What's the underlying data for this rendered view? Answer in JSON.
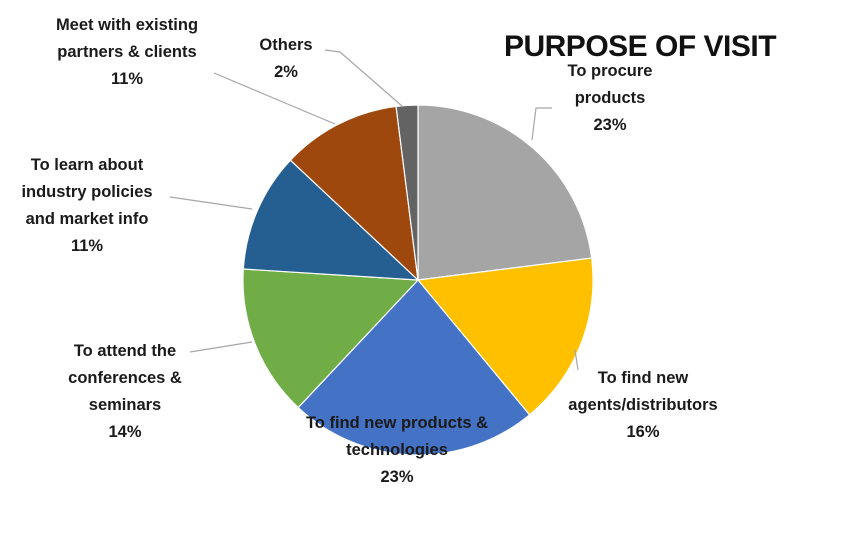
{
  "chart_data": {
    "type": "pie",
    "title": "PURPOSE OF VISIT",
    "slices": [
      {
        "name_lines": [
          "To procure",
          "products"
        ],
        "value": 23,
        "value_label": "23%",
        "color": "#a5a5a5"
      },
      {
        "name_lines": [
          "To find new",
          "agents/distributors"
        ],
        "value": 16,
        "value_label": "16%",
        "color": "#ffc000"
      },
      {
        "name_lines": [
          "To find new products &",
          "technologies"
        ],
        "value": 23,
        "value_label": "23%",
        "color": "#4472c4"
      },
      {
        "name_lines": [
          "To attend the",
          "conferences &",
          "seminars"
        ],
        "value": 14,
        "value_label": "14%",
        "color": "#70ad47"
      },
      {
        "name_lines": [
          "To learn about",
          "industry policies",
          "and market info"
        ],
        "value": 11,
        "value_label": "11%",
        "color": "#255e91"
      },
      {
        "name_lines": [
          "Meet with existing",
          "partners & clients"
        ],
        "value": 11,
        "value_label": "11%",
        "color": "#9e480e"
      },
      {
        "name_lines": [
          "Others"
        ],
        "value": 2,
        "value_label": "2%",
        "color": "#636363"
      }
    ],
    "legend": "none"
  }
}
